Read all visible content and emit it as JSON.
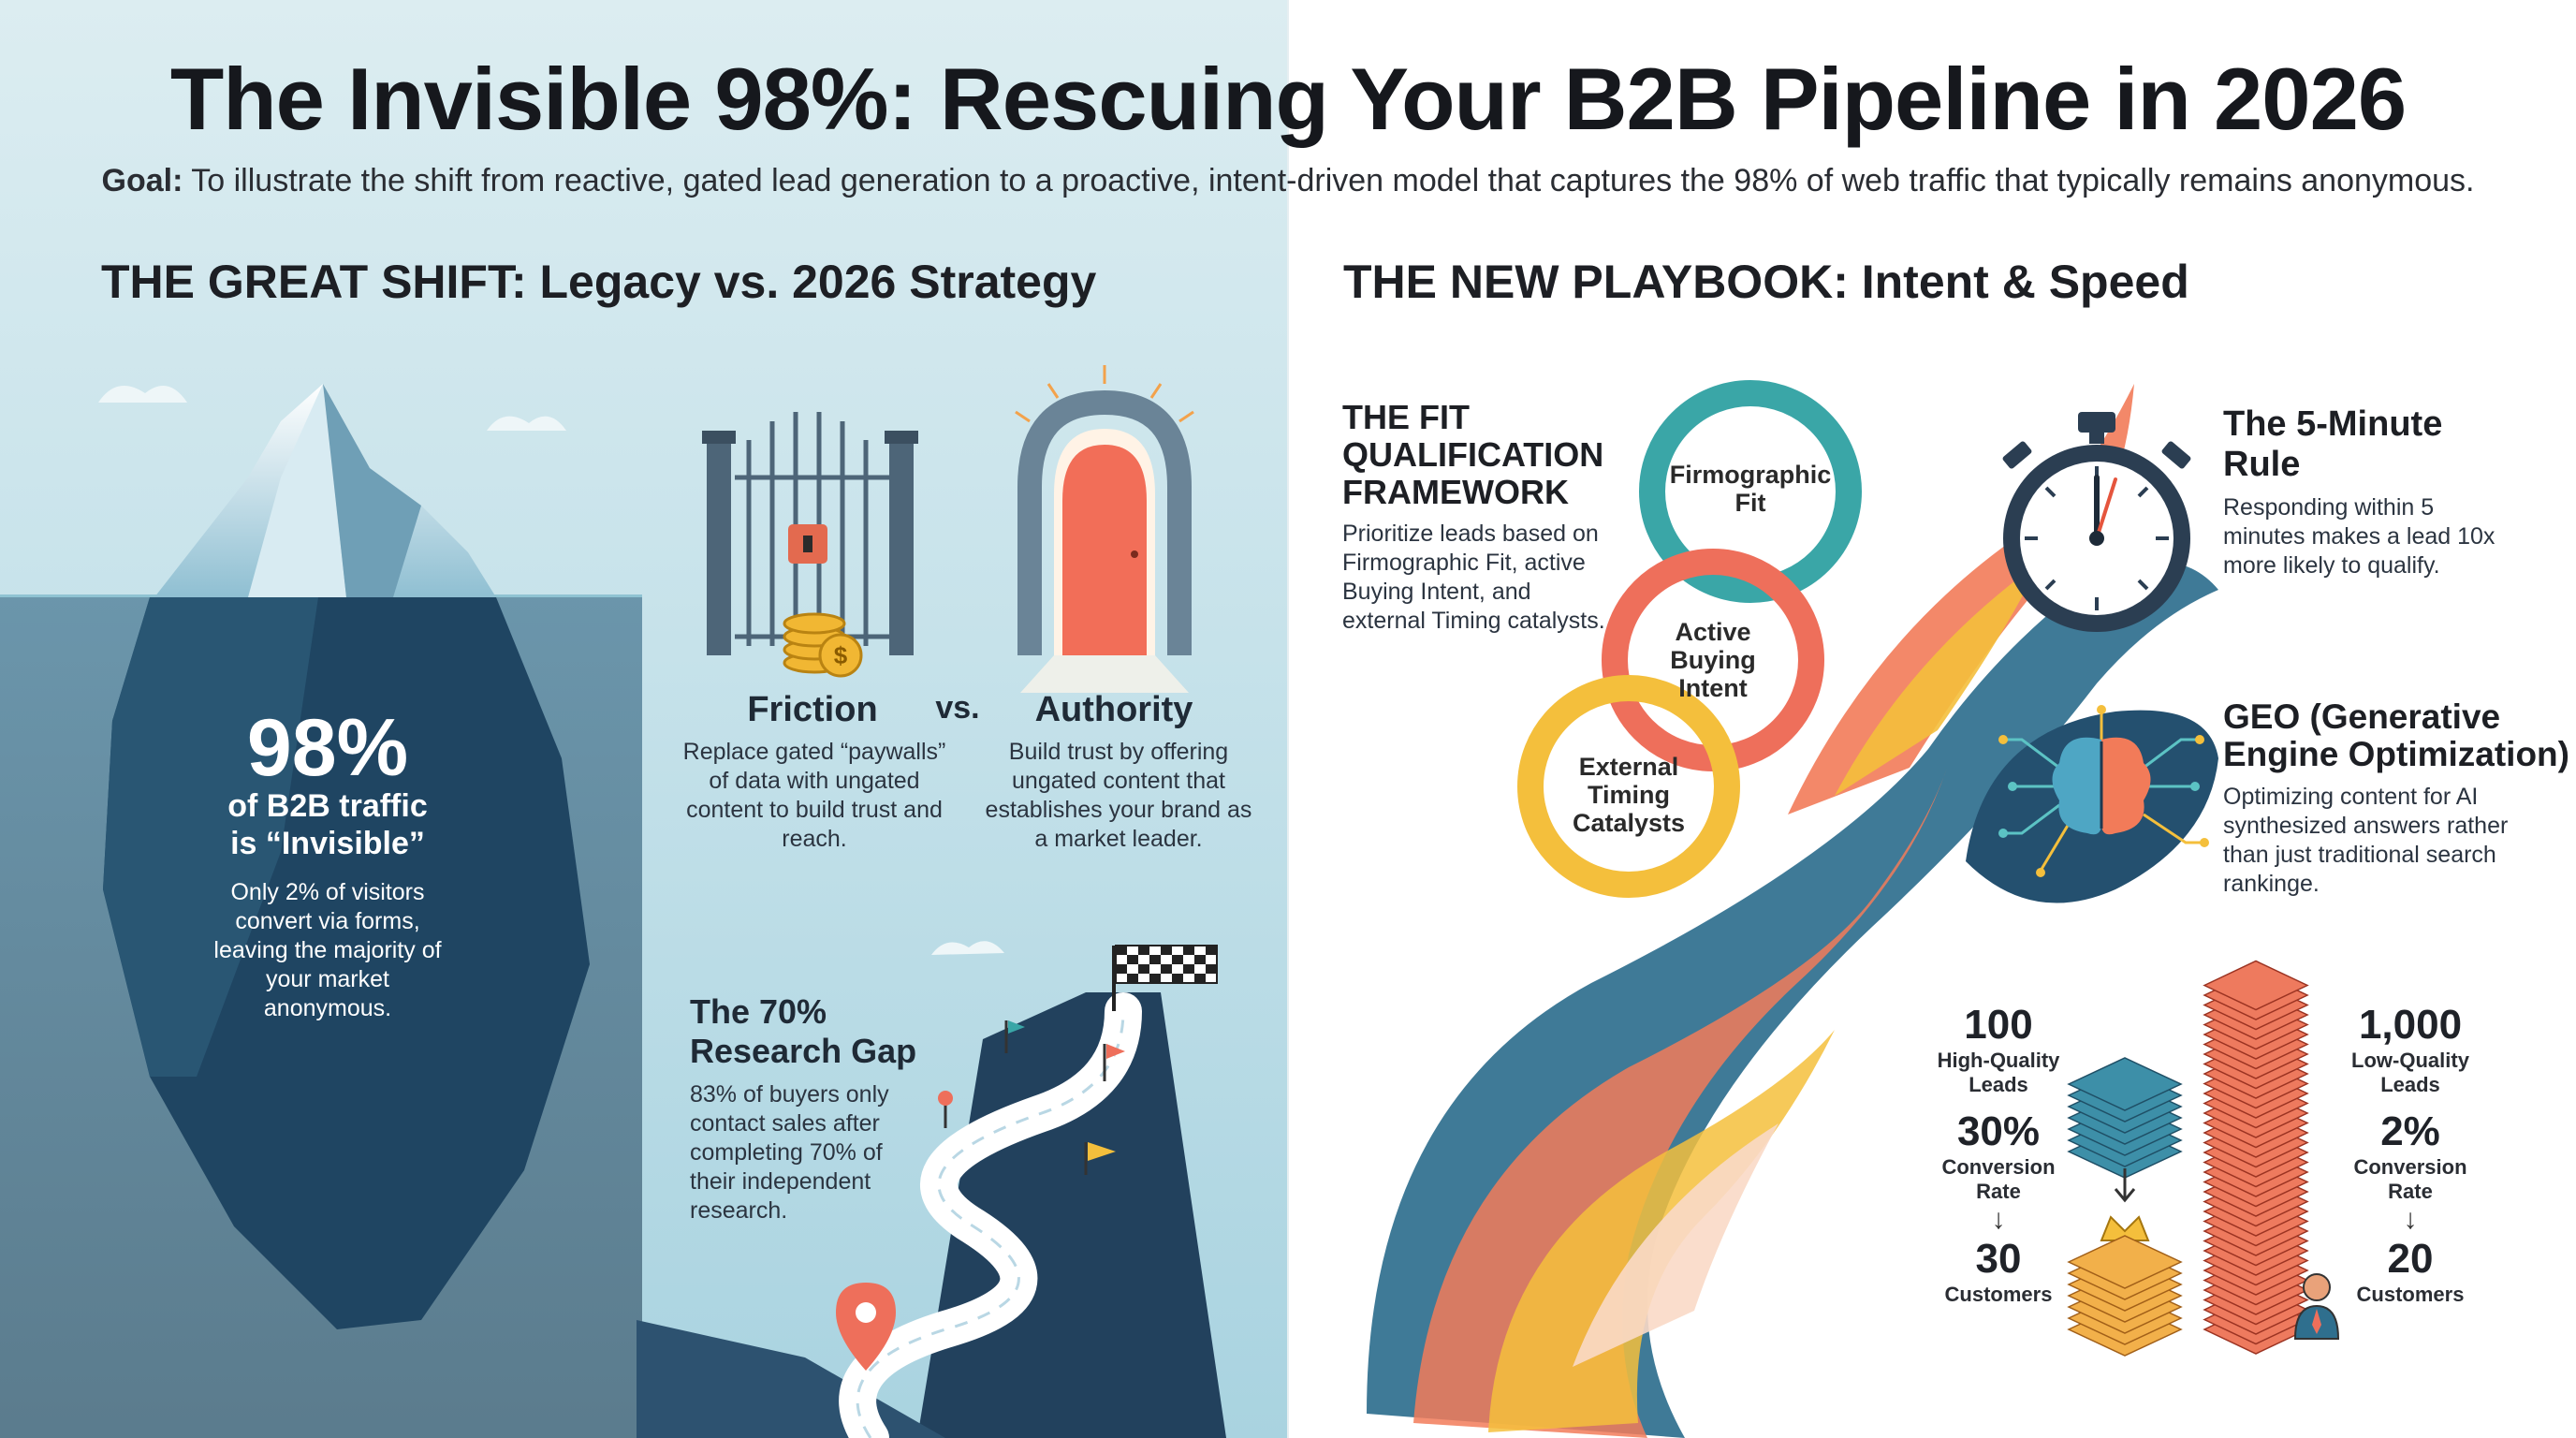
{
  "title": "The Invisible 98%: Rescuing Your B2B Pipeline in 2026",
  "goal": {
    "label": "Goal:",
    "text": "To illustrate the shift from reactive, gated lead generation to a proactive, intent-driven model that captures the 98% of web traffic that typically remains anonymous."
  },
  "left": {
    "heading": "THE GREAT SHIFT: Legacy vs. 2026 Strategy",
    "iceberg": {
      "stat": "98%",
      "stat_label_1": "of B2B traffic",
      "stat_label_2": "is “Invisible”",
      "desc": "Only 2% of visitors convert via forms, leaving the majority of your market anonymous."
    },
    "friction": {
      "title": "Friction",
      "desc": "Replace gated “paywalls” of data with ungated content to build trust and reach."
    },
    "vs": "vs.",
    "authority": {
      "title": "Authority",
      "desc": "Build trust by offering ungated content that establishes your brand as a market leader."
    },
    "research": {
      "title_1": "The 70%",
      "title_2": "Research Gap",
      "desc": "83% of buyers only contact sales after completing 70% of their independent research."
    }
  },
  "right": {
    "heading": "THE NEW PLAYBOOK: Intent & Speed",
    "fit": {
      "title_1": "THE FIT",
      "title_2": "QUALIFICATION",
      "title_3": "FRAMEWORK",
      "desc": "Prioritize leads based on Firmographic Fit, active Buying Intent, and external Timing catalysts.",
      "rings": [
        {
          "label_1": "Firmographic",
          "label_2": "Fit",
          "color": "#3aa6a7"
        },
        {
          "label_1": "Active",
          "label_2": "Buying",
          "label_3": "Intent",
          "color": "#ee6f5b"
        },
        {
          "label_1": "External",
          "label_2": "Timing",
          "label_3": "Catalysts",
          "color": "#f4bf3c"
        }
      ]
    },
    "five_min": {
      "title_1": "The 5-Minute",
      "title_2": "Rule",
      "desc": "Responding within 5 minutes makes a lead 10x more likely to qualify."
    },
    "geo": {
      "title_1": "GEO (Generative",
      "title_2": "Engine Optimization)",
      "desc": "Optimizing content for AI synthesized answers rather than just traditional search rankinge."
    },
    "compare": {
      "quality": {
        "leads": "100",
        "leads_label_1": "High-Quality",
        "leads_label_2": "Leads",
        "rate": "30%",
        "rate_label_1": "Conversion",
        "rate_label_2": "Rate",
        "customers": "30",
        "customers_label": "Customers"
      },
      "volume": {
        "leads": "1,000",
        "leads_label_1": "Low-Quality",
        "leads_label_2": "Leads",
        "rate": "2%",
        "rate_label_1": "Conversion",
        "rate_label_2": "Rate",
        "customers": "20",
        "customers_label": "Customers"
      },
      "arrow": "↓"
    }
  }
}
